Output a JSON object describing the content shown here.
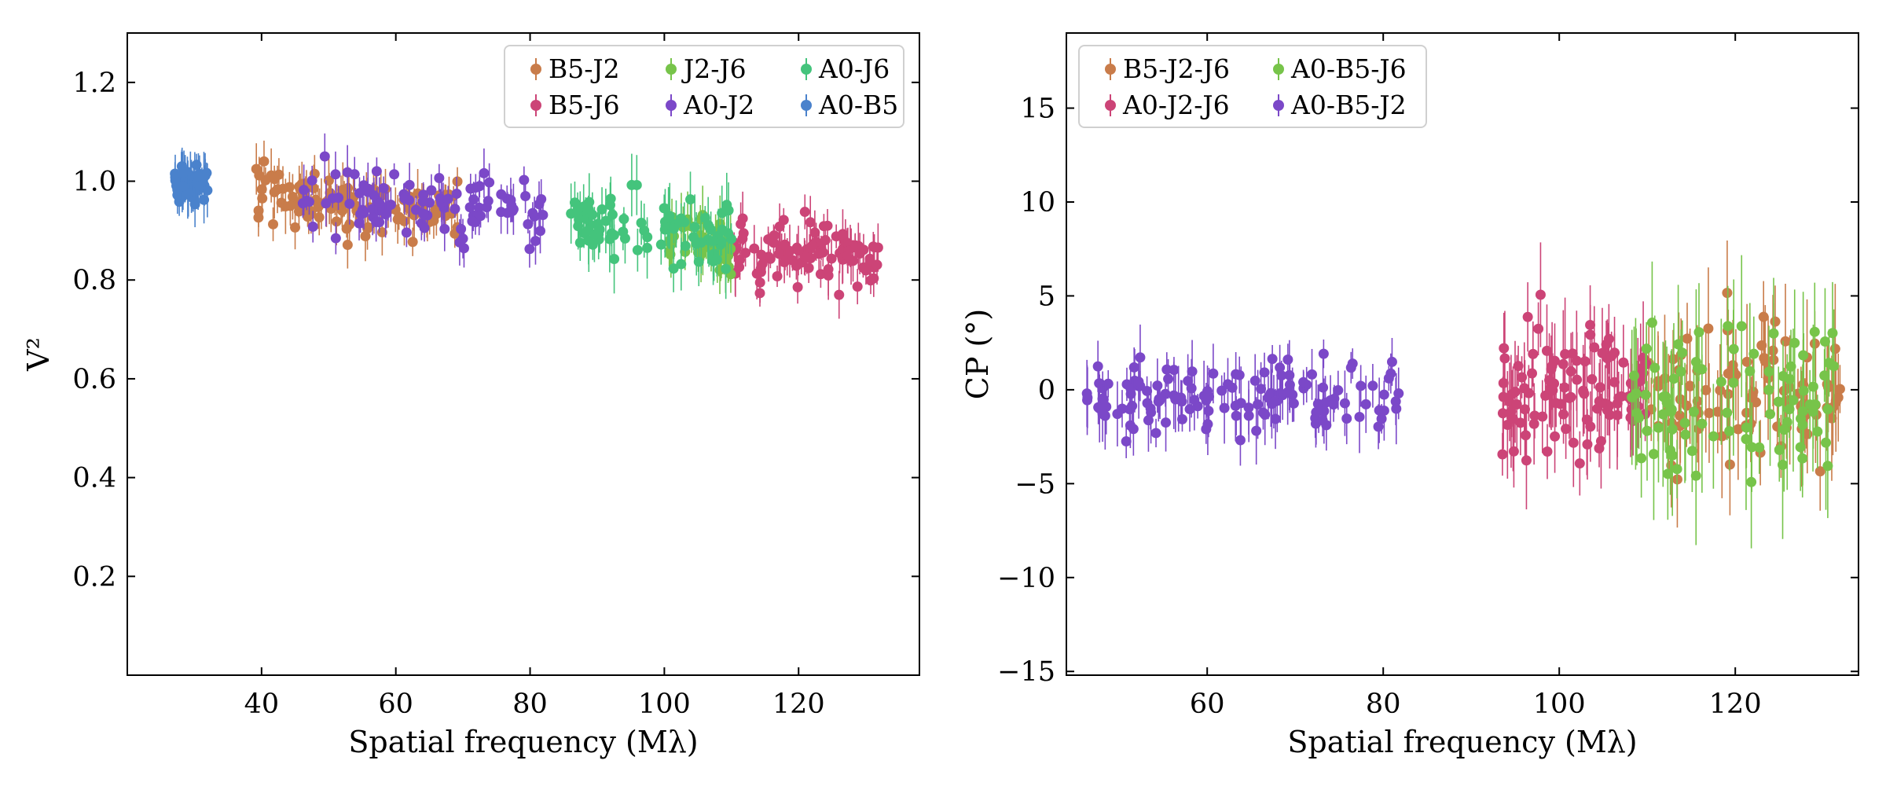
{
  "chart_data": [
    {
      "type": "scatter",
      "xlabel": "Spatial frequency (Mλ)",
      "ylabel": "V²",
      "xlim": [
        20,
        138
      ],
      "ylim": [
        0,
        1.3
      ],
      "xticks": [
        40,
        60,
        80,
        100,
        120
      ],
      "yticks": [
        0.2,
        0.4,
        0.6,
        0.8,
        1.0,
        1.2
      ],
      "xtick_labels": [
        "40",
        "60",
        "80",
        "100",
        "120"
      ],
      "ytick_labels": [
        "0.2",
        "0.4",
        "0.6",
        "0.8",
        "1.0",
        "1.2"
      ],
      "legend_position": "top-right",
      "legend_columns": 3,
      "series": [
        {
          "name": "B5-J2",
          "color": "#c97c4a",
          "x_range": [
            39,
            70
          ],
          "y_center": 0.955,
          "y_slope": -0.0012,
          "y_scatter": 0.03,
          "err": 0.04,
          "n": 110
        },
        {
          "name": "B5-J6",
          "color": "#cc4477",
          "x_range": [
            110,
            132
          ],
          "y_center": 0.855,
          "y_slope": -0.0008,
          "y_scatter": 0.03,
          "err": 0.04,
          "n": 100
        },
        {
          "name": "J2-J6",
          "color": "#77c44a",
          "x_range": [
            100,
            110
          ],
          "y_center": 0.875,
          "y_slope": -0.003,
          "y_scatter": 0.03,
          "err": 0.05,
          "n": 45
        },
        {
          "name": "A0-J2",
          "color": "#7b48c8",
          "x_range": [
            46,
            82
          ],
          "y_center": 0.955,
          "y_slope": -0.0012,
          "y_scatter": 0.035,
          "err": 0.04,
          "n": 100
        },
        {
          "name": "A0-J6",
          "color": "#44c47c",
          "x_range": [
            86,
            110
          ],
          "y_center": 0.9,
          "y_slope": -0.0015,
          "y_scatter": 0.035,
          "err": 0.05,
          "n": 85
        },
        {
          "name": "A0-B5",
          "color": "#4a82cc",
          "x_range": [
            27,
            32
          ],
          "y_center": 0.995,
          "y_slope": 0,
          "y_scatter": 0.018,
          "err": 0.04,
          "n": 50
        }
      ]
    },
    {
      "type": "scatter",
      "xlabel": "Spatial frequency (Mλ)",
      "ylabel": "CP (°)",
      "xlim": [
        44,
        134
      ],
      "ylim": [
        -15.2,
        19
      ],
      "xticks": [
        60,
        80,
        100,
        120
      ],
      "yticks": [
        -15,
        -10,
        -5,
        0,
        5,
        10,
        15
      ],
      "xtick_labels": [
        "60",
        "80",
        "100",
        "120"
      ],
      "ytick_labels": [
        "−15",
        "−10",
        "−5",
        "0",
        "5",
        "10",
        "15"
      ],
      "legend_position": "top-left",
      "legend_columns": 2,
      "series": [
        {
          "name": "B5-J2-J6",
          "color": "#c97c4a",
          "x_range": [
            110,
            132
          ],
          "y_center": 0,
          "y_slope": 0,
          "y_scatter": 1.8,
          "err": 2.5,
          "n": 90
        },
        {
          "name": "A0-J2-J6",
          "color": "#cc4477",
          "x_range": [
            93,
            110
          ],
          "y_center": 0,
          "y_slope": 0,
          "y_scatter": 1.6,
          "err": 2.2,
          "n": 110
        },
        {
          "name": "A0-B5-J6",
          "color": "#77c44a",
          "x_range": [
            108,
            132
          ],
          "y_center": -0.3,
          "y_slope": 0,
          "y_scatter": 2.0,
          "err": 3.0,
          "n": 90
        },
        {
          "name": "A0-B5-J2",
          "color": "#7b48c8",
          "x_range": [
            46,
            82
          ],
          "y_center": -0.4,
          "y_slope": 0,
          "y_scatter": 0.9,
          "err": 1.4,
          "n": 140
        }
      ]
    }
  ]
}
